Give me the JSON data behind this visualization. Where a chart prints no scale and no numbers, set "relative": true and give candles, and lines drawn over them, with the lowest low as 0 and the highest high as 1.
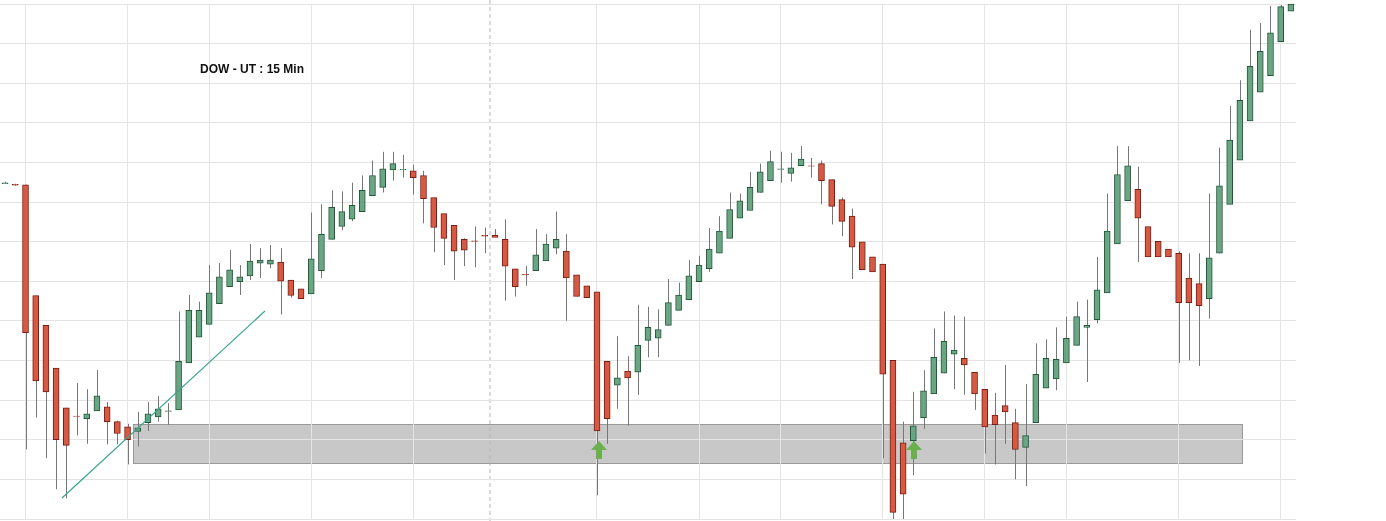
{
  "chart_data": {
    "type": "candlestick",
    "title": "DOW - UT : 15 Min",
    "relative": true,
    "grid": true,
    "legend": false,
    "tick_labels": false,
    "categories": [
      null,
      null,
      null,
      null,
      null,
      null,
      null,
      null,
      null,
      null,
      null,
      null,
      null,
      null,
      null,
      null,
      null,
      null,
      null,
      null,
      null,
      null,
      null,
      null,
      null,
      null,
      null,
      null,
      null,
      null,
      null,
      null,
      null,
      null,
      null,
      null,
      null,
      null,
      null,
      null,
      null,
      null,
      null,
      null,
      null,
      null,
      null,
      null,
      null,
      null,
      null,
      null,
      null,
      null,
      null,
      null,
      null,
      null,
      null,
      null,
      null,
      null,
      null,
      null,
      null,
      null,
      null,
      null,
      null,
      null,
      null,
      null,
      null,
      null,
      null,
      null,
      null,
      null,
      null,
      null,
      null,
      null,
      null,
      null,
      null,
      null,
      null,
      null,
      null,
      null,
      null,
      null,
      null,
      null,
      null,
      null,
      null,
      null,
      null,
      null,
      null,
      null,
      null,
      null,
      null,
      null,
      null,
      null,
      null,
      null,
      null,
      null,
      null,
      null,
      null,
      null,
      null,
      null,
      null,
      null,
      null,
      null,
      null,
      null,
      null,
      null,
      null
    ],
    "ohlc": [
      [
        0.651,
        0.655,
        0.651,
        0.653
      ],
      [
        0.65,
        0.651,
        0.647,
        0.648
      ],
      [
        0.649,
        0.649,
        0.135,
        0.362
      ],
      [
        0.434,
        0.434,
        0.197,
        0.268
      ],
      [
        0.376,
        0.376,
        0.118,
        0.247
      ],
      [
        0.293,
        0.293,
        0.058,
        0.154
      ],
      [
        0.216,
        0.216,
        0.04,
        0.143
      ],
      [
        0.2,
        0.264,
        0.162,
        0.199
      ],
      [
        0.195,
        0.252,
        0.146,
        0.204
      ],
      [
        0.21,
        0.289,
        0.21,
        0.239
      ],
      [
        0.218,
        0.227,
        0.145,
        0.189
      ],
      [
        0.189,
        0.191,
        0.145,
        0.166
      ],
      [
        0.179,
        0.185,
        0.106,
        0.154
      ],
      [
        0.17,
        0.208,
        0.141,
        0.177
      ],
      [
        0.187,
        0.227,
        0.171,
        0.204
      ],
      [
        0.198,
        0.239,
        0.189,
        0.214
      ],
      [
        0.209,
        0.225,
        0.183,
        0.21
      ],
      [
        0.212,
        0.403,
        0.212,
        0.306
      ],
      [
        0.303,
        0.435,
        0.303,
        0.405
      ],
      [
        0.353,
        0.422,
        0.353,
        0.405
      ],
      [
        0.378,
        0.493,
        0.378,
        0.439
      ],
      [
        0.418,
        0.497,
        0.418,
        0.47
      ],
      [
        0.451,
        0.522,
        0.451,
        0.484
      ],
      [
        0.461,
        0.493,
        0.435,
        0.47
      ],
      [
        0.472,
        0.534,
        0.464,
        0.501
      ],
      [
        0.497,
        0.526,
        0.468,
        0.503
      ],
      [
        0.495,
        0.532,
        0.487,
        0.503
      ],
      [
        0.499,
        0.526,
        0.397,
        0.462
      ],
      [
        0.464,
        0.464,
        0.43,
        0.434
      ],
      [
        0.447,
        0.447,
        0.428,
        0.428
      ],
      [
        0.437,
        0.595,
        0.437,
        0.505
      ],
      [
        0.482,
        0.611,
        0.468,
        0.553
      ],
      [
        0.543,
        0.638,
        0.543,
        0.605
      ],
      [
        0.568,
        0.636,
        0.561,
        0.597
      ],
      [
        0.582,
        0.653,
        0.578,
        0.609
      ],
      [
        0.597,
        0.667,
        0.597,
        0.638
      ],
      [
        0.628,
        0.696,
        0.628,
        0.667
      ],
      [
        0.644,
        0.713,
        0.634,
        0.68
      ],
      [
        0.678,
        0.713,
        0.657,
        0.69
      ],
      [
        0.678,
        0.707,
        0.663,
        0.679
      ],
      [
        0.676,
        0.688,
        0.63,
        0.663
      ],
      [
        0.667,
        0.676,
        0.574,
        0.622
      ],
      [
        0.624,
        0.624,
        0.518,
        0.566
      ],
      [
        0.593,
        0.593,
        0.493,
        0.545
      ],
      [
        0.57,
        0.57,
        0.464,
        0.52
      ],
      [
        0.543,
        0.545,
        0.491,
        0.522
      ],
      [
        0.54,
        0.568,
        0.489,
        0.539
      ],
      [
        0.551,
        0.566,
        0.516,
        0.549
      ],
      [
        0.551,
        0.563,
        0.547,
        0.547
      ],
      [
        0.543,
        0.582,
        0.424,
        0.491
      ],
      [
        0.486,
        0.486,
        0.432,
        0.451
      ],
      [
        0.475,
        0.491,
        0.453,
        0.474
      ],
      [
        0.482,
        0.563,
        0.482,
        0.513
      ],
      [
        0.501,
        0.553,
        0.501,
        0.534
      ],
      [
        0.526,
        0.597,
        0.514,
        0.543
      ],
      [
        0.52,
        0.553,
        0.385,
        0.468
      ],
      [
        0.474,
        0.474,
        0.432,
        0.432
      ],
      [
        0.453,
        0.453,
        0.43,
        0.43
      ],
      [
        0.441,
        0.441,
        0.046,
        0.171
      ],
      [
        0.306,
        0.306,
        0.146,
        0.195
      ],
      [
        0.26,
        0.355,
        0.214,
        0.274
      ],
      [
        0.287,
        0.316,
        0.181,
        0.274
      ],
      [
        0.285,
        0.416,
        0.241,
        0.337
      ],
      [
        0.347,
        0.412,
        0.314,
        0.372
      ],
      [
        0.351,
        0.407,
        0.314,
        0.368
      ],
      [
        0.376,
        0.466,
        0.376,
        0.42
      ],
      [
        0.405,
        0.459,
        0.405,
        0.435
      ],
      [
        0.426,
        0.503,
        0.426,
        0.472
      ],
      [
        0.461,
        0.511,
        0.461,
        0.493
      ],
      [
        0.486,
        0.565,
        0.48,
        0.524
      ],
      [
        0.516,
        0.588,
        0.516,
        0.559
      ],
      [
        0.545,
        0.634,
        0.545,
        0.601
      ],
      [
        0.584,
        0.632,
        0.584,
        0.618
      ],
      [
        0.599,
        0.674,
        0.599,
        0.644
      ],
      [
        0.634,
        0.69,
        0.634,
        0.674
      ],
      [
        0.657,
        0.715,
        0.657,
        0.694
      ],
      [
        0.679,
        0.713,
        0.653,
        0.68
      ],
      [
        0.671,
        0.711,
        0.655,
        0.682
      ],
      [
        0.686,
        0.724,
        0.686,
        0.699
      ],
      [
        0.686,
        0.701,
        0.663,
        0.685
      ],
      [
        0.69,
        0.696,
        0.611,
        0.657
      ],
      [
        0.659,
        0.659,
        0.572,
        0.607
      ],
      [
        0.62,
        0.624,
        0.549,
        0.578
      ],
      [
        0.588,
        0.603,
        0.466,
        0.528
      ],
      [
        0.538,
        0.538,
        0.484,
        0.484
      ],
      [
        0.509,
        0.509,
        0.48,
        0.48
      ],
      [
        0.495,
        0.495,
        0.118,
        0.281
      ],
      [
        0.308,
        0.308,
        0,
        0.013
      ],
      [
        0.148,
        0.189,
        0,
        0.048
      ],
      [
        0.152,
        0.247,
        0.085,
        0.181
      ],
      [
        0.197,
        0.289,
        0.175,
        0.249
      ],
      [
        0.243,
        0.37,
        0.243,
        0.314
      ],
      [
        0.283,
        0.403,
        0.283,
        0.345
      ],
      [
        0.32,
        0.395,
        0.252,
        0.328
      ],
      [
        0.312,
        0.393,
        0.241,
        0.299
      ],
      [
        0.285,
        0.285,
        0.212,
        0.243
      ],
      [
        0.252,
        0.252,
        0.127,
        0.179
      ],
      [
        0.202,
        0.245,
        0.106,
        0.183
      ],
      [
        0.22,
        0.299,
        0.146,
        0.208
      ],
      [
        0.187,
        0.214,
        0.077,
        0.135
      ],
      [
        0.139,
        0.262,
        0.064,
        0.162
      ],
      [
        0.187,
        0.341,
        0.187,
        0.281
      ],
      [
        0.254,
        0.349,
        0.254,
        0.312
      ],
      [
        0.272,
        0.372,
        0.25,
        0.31
      ],
      [
        0.303,
        0.393,
        0.303,
        0.351
      ],
      [
        0.337,
        0.422,
        0.337,
        0.393
      ],
      [
        0.372,
        0.426,
        0.266,
        0.376
      ],
      [
        0.387,
        0.509,
        0.38,
        0.445
      ],
      [
        0.439,
        0.632,
        0.439,
        0.559
      ],
      [
        0.534,
        0.724,
        0.534,
        0.669
      ],
      [
        0.618,
        0.724,
        0.618,
        0.686
      ],
      [
        0.64,
        0.684,
        0.499,
        0.584
      ],
      [
        0.568,
        0.568,
        0.509,
        0.509
      ],
      [
        0.539,
        0.539,
        0.509,
        0.509
      ],
      [
        0.524,
        0.524,
        0.509,
        0.509
      ],
      [
        0.516,
        0.52,
        0.303,
        0.42
      ],
      [
        0.468,
        0.516,
        0.308,
        0.42
      ],
      [
        0.457,
        0.516,
        0.297,
        0.414
      ],
      [
        0.428,
        0.632,
        0.389,
        0.507
      ],
      [
        0.516,
        0.721,
        0.516,
        0.647
      ],
      [
        0.611,
        0.802,
        0.611,
        0.736
      ],
      [
        0.697,
        0.852,
        0.697,
        0.813
      ],
      [
        0.773,
        0.95,
        0.773,
        0.879
      ],
      [
        0.829,
        0.963,
        0.829,
        0.908
      ],
      [
        0.861,
        0.996,
        0.861,
        0.944
      ],
      [
        0.927,
        0.998,
        0.927,
        0.995
      ],
      [
        0.986,
        1,
        0.986,
        1
      ]
    ]
  }
}
